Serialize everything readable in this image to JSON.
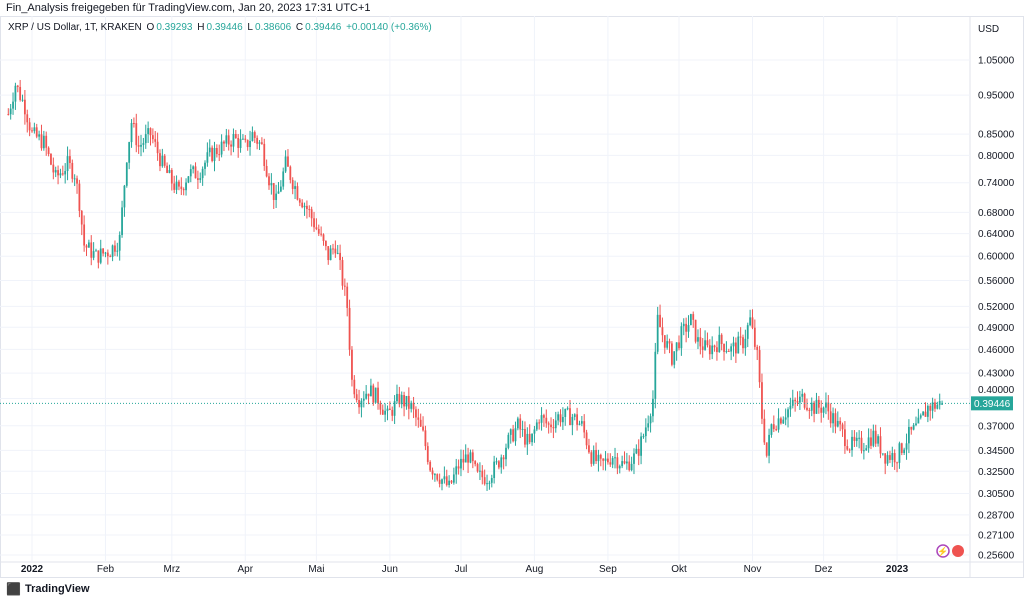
{
  "share_line": "Fin_Analysis freigegeben für TradingView.com, Jan 20, 2023 17:31 UTC+1",
  "legend": {
    "symbol": "XRP / US Dollar, 1T, KRAKEN",
    "o_label": "O",
    "o": "0.39293",
    "h_label": "H",
    "h": "0.39446",
    "l_label": "L",
    "l": "0.38606",
    "c_label": "C",
    "c": "0.39446",
    "change": "+0.00140 (+0.36%)"
  },
  "footer": {
    "brand": "TradingView"
  },
  "colors": {
    "up": "#26a69a",
    "down": "#ef5350",
    "grid": "#f0f3fa"
  },
  "chart_data": {
    "type": "candlestick",
    "title": "XRP / US Dollar, 1T, KRAKEN",
    "currency": "USD",
    "yscale": "log",
    "ylim": [
      0.25,
      1.12
    ],
    "y_ticks": [
      "1.05000",
      "0.95000",
      "0.85000",
      "0.80000",
      "0.74000",
      "0.68000",
      "0.64000",
      "0.60000",
      "0.56000",
      "0.52000",
      "0.49000",
      "0.46000",
      "0.43000",
      "0.40000",
      "0.37000",
      "0.34500",
      "0.32500",
      "0.30500",
      "0.28700",
      "0.27100",
      "0.25600"
    ],
    "x_ticks": [
      {
        "label": "2022",
        "day": 0
      },
      {
        "label": "Feb",
        "day": 31
      },
      {
        "label": "Mrz",
        "day": 59
      },
      {
        "label": "Apr",
        "day": 90
      },
      {
        "label": "Mai",
        "day": 120
      },
      {
        "label": "Jun",
        "day": 151
      },
      {
        "label": "Jul",
        "day": 181
      },
      {
        "label": "Aug",
        "day": 212
      },
      {
        "label": "Sep",
        "day": 243
      },
      {
        "label": "Okt",
        "day": 273
      },
      {
        "label": "Nov",
        "day": 304
      },
      {
        "label": "Dez",
        "day": 334
      },
      {
        "label": "2023",
        "day": 365
      }
    ],
    "last_price": "0.39446",
    "close_anchors_day_price": [
      [
        -10,
        0.9
      ],
      [
        -7,
        0.98
      ],
      [
        -3,
        0.92
      ],
      [
        0,
        0.85
      ],
      [
        5,
        0.83
      ],
      [
        10,
        0.75
      ],
      [
        15,
        0.78
      ],
      [
        18,
        0.76
      ],
      [
        20,
        0.7
      ],
      [
        22,
        0.62
      ],
      [
        27,
        0.6
      ],
      [
        33,
        0.61
      ],
      [
        37,
        0.63
      ],
      [
        40,
        0.8
      ],
      [
        42,
        0.88
      ],
      [
        45,
        0.82
      ],
      [
        50,
        0.85
      ],
      [
        55,
        0.78
      ],
      [
        58,
        0.75
      ],
      [
        62,
        0.72
      ],
      [
        66,
        0.76
      ],
      [
        70,
        0.76
      ],
      [
        75,
        0.8
      ],
      [
        80,
        0.82
      ],
      [
        85,
        0.84
      ],
      [
        90,
        0.82
      ],
      [
        93,
        0.85
      ],
      [
        97,
        0.82
      ],
      [
        100,
        0.75
      ],
      [
        103,
        0.7
      ],
      [
        107,
        0.78
      ],
      [
        112,
        0.72
      ],
      [
        117,
        0.68
      ],
      [
        121,
        0.64
      ],
      [
        125,
        0.6
      ],
      [
        128,
        0.62
      ],
      [
        130,
        0.58
      ],
      [
        133,
        0.52
      ],
      [
        135,
        0.42
      ],
      [
        138,
        0.4
      ],
      [
        142,
        0.41
      ],
      [
        146,
        0.4
      ],
      [
        150,
        0.38
      ],
      [
        155,
        0.4
      ],
      [
        160,
        0.39
      ],
      [
        165,
        0.36
      ],
      [
        168,
        0.33
      ],
      [
        172,
        0.32
      ],
      [
        176,
        0.31
      ],
      [
        180,
        0.33
      ],
      [
        184,
        0.34
      ],
      [
        188,
        0.32
      ],
      [
        192,
        0.32
      ],
      [
        196,
        0.33
      ],
      [
        200,
        0.35
      ],
      [
        205,
        0.37
      ],
      [
        210,
        0.35
      ],
      [
        214,
        0.38
      ],
      [
        218,
        0.37
      ],
      [
        222,
        0.38
      ],
      [
        228,
        0.38
      ],
      [
        232,
        0.37
      ],
      [
        236,
        0.34
      ],
      [
        240,
        0.33
      ],
      [
        245,
        0.34
      ],
      [
        250,
        0.33
      ],
      [
        255,
        0.34
      ],
      [
        258,
        0.36
      ],
      [
        262,
        0.4
      ],
      [
        264,
        0.5
      ],
      [
        266,
        0.48
      ],
      [
        270,
        0.45
      ],
      [
        274,
        0.48
      ],
      [
        278,
        0.5
      ],
      [
        281,
        0.47
      ],
      [
        285,
        0.46
      ],
      [
        290,
        0.47
      ],
      [
        295,
        0.46
      ],
      [
        300,
        0.47
      ],
      [
        303,
        0.5
      ],
      [
        306,
        0.45
      ],
      [
        308,
        0.38
      ],
      [
        310,
        0.34
      ],
      [
        312,
        0.37
      ],
      [
        316,
        0.38
      ],
      [
        320,
        0.39
      ],
      [
        325,
        0.4
      ],
      [
        330,
        0.39
      ],
      [
        335,
        0.39
      ],
      [
        340,
        0.37
      ],
      [
        345,
        0.35
      ],
      [
        350,
        0.35
      ],
      [
        355,
        0.36
      ],
      [
        360,
        0.34
      ],
      [
        365,
        0.34
      ],
      [
        370,
        0.36
      ],
      [
        374,
        0.37
      ],
      [
        378,
        0.39
      ],
      [
        384,
        0.39446
      ]
    ]
  }
}
